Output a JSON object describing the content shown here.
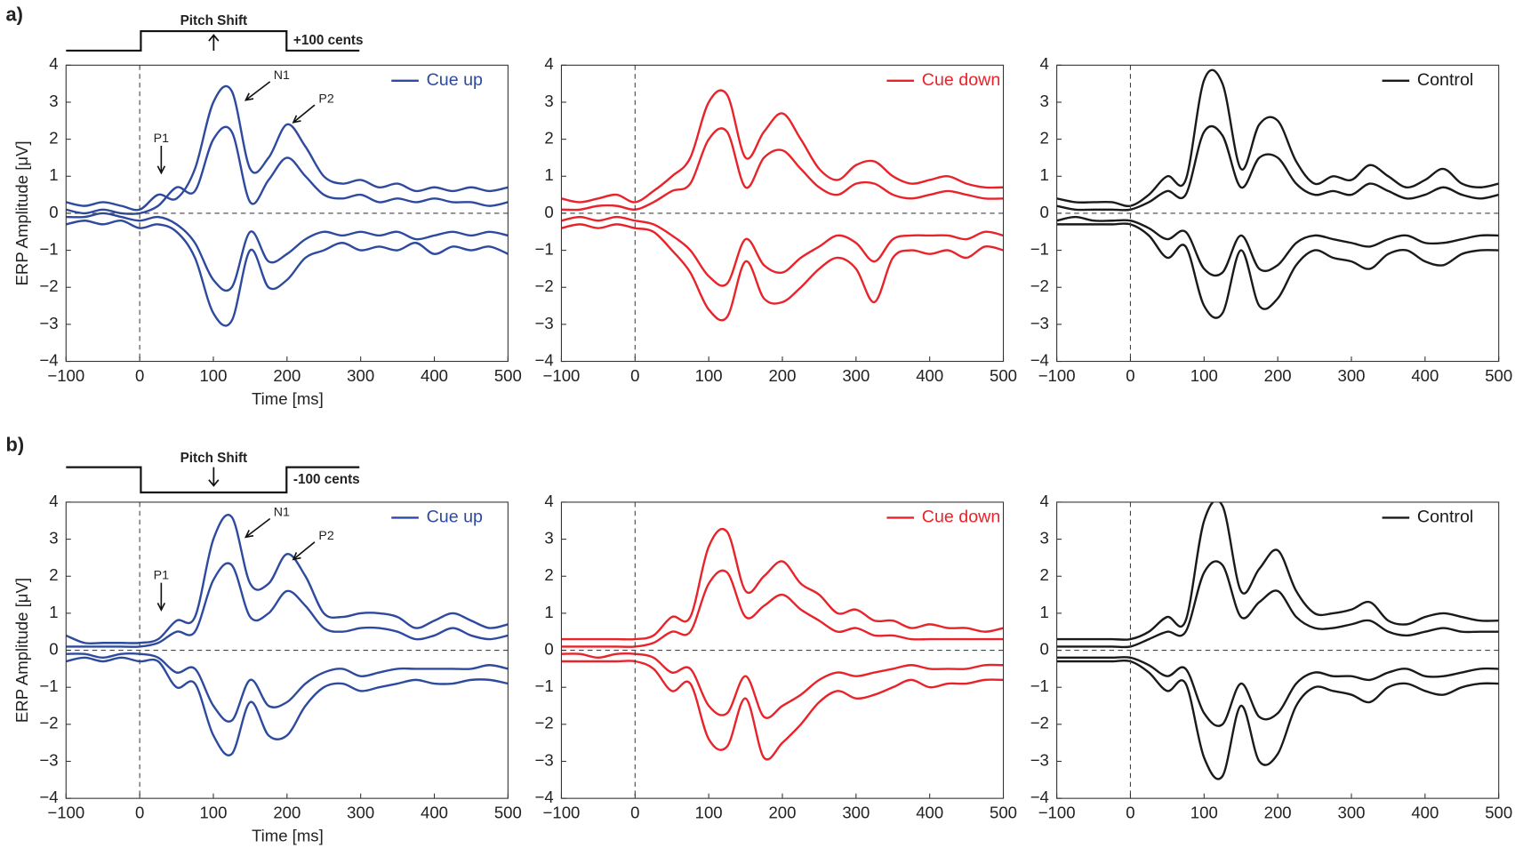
{
  "panel_labels": [
    "a)",
    "b)"
  ],
  "stimulus": [
    {
      "label": "Pitch Shift",
      "amount": "+100 cents"
    },
    {
      "label": "Pitch Shift",
      "amount": "-100 cents"
    }
  ],
  "chart_data": [
    {
      "type": "line",
      "legend": "Cue up",
      "color": "#2e4a9e",
      "ylabel": "ERP Amplitude [μV]",
      "xlabel": "Time [ms]",
      "annotations": [
        "P1",
        "N1",
        "P2"
      ],
      "x": [
        -100,
        -75,
        -50,
        -25,
        0,
        25,
        50,
        75,
        100,
        125,
        150,
        175,
        200,
        225,
        250,
        275,
        300,
        325,
        350,
        375,
        400,
        425,
        450,
        475,
        500
      ],
      "traces": [
        [
          0.3,
          0.2,
          0.3,
          0.2,
          0.1,
          0.5,
          0.4,
          1.2,
          3.0,
          3.3,
          1.2,
          1.5,
          2.4,
          1.8,
          1.0,
          0.8,
          0.9,
          0.7,
          0.8,
          0.6,
          0.7,
          0.6,
          0.7,
          0.6,
          0.7
        ],
        [
          -0.3,
          -0.2,
          -0.3,
          -0.2,
          -0.4,
          -0.3,
          -0.5,
          -1.2,
          -2.7,
          -2.9,
          -1.0,
          -2.0,
          -1.8,
          -1.2,
          -1.0,
          -0.8,
          -1.0,
          -0.9,
          -1.0,
          -0.8,
          -1.1,
          -0.9,
          -1.0,
          -0.9,
          -1.1
        ],
        [
          0.1,
          0.0,
          0.1,
          0.0,
          0.0,
          0.2,
          0.7,
          0.6,
          2.0,
          2.2,
          0.3,
          0.9,
          1.5,
          1.0,
          0.5,
          0.4,
          0.5,
          0.3,
          0.4,
          0.3,
          0.4,
          0.3,
          0.3,
          0.2,
          0.3
        ],
        [
          -0.1,
          -0.1,
          0.0,
          -0.1,
          -0.2,
          -0.1,
          -0.3,
          -0.8,
          -1.8,
          -2.0,
          -0.5,
          -1.3,
          -1.1,
          -0.7,
          -0.5,
          -0.6,
          -0.5,
          -0.6,
          -0.5,
          -0.7,
          -0.6,
          -0.5,
          -0.6,
          -0.5,
          -0.6
        ]
      ],
      "xlim": [
        -100,
        500
      ],
      "ylim": [
        -4,
        4
      ],
      "xticks": [
        {
          "value": -100,
          "label": "−100"
        },
        0,
        100,
        200,
        300,
        400,
        500
      ],
      "yticks": [
        {
          "value": -4,
          "label": "−4"
        },
        {
          "value": -3,
          "label": "−3"
        },
        {
          "value": -2,
          "label": "−2"
        },
        {
          "value": -1,
          "label": "−1"
        },
        0,
        1,
        2,
        3,
        4
      ]
    },
    {
      "type": "line",
      "legend": "Cue down",
      "color": "#e8232a",
      "x": [
        -100,
        -75,
        -50,
        -25,
        0,
        25,
        50,
        75,
        100,
        125,
        150,
        175,
        200,
        225,
        250,
        275,
        300,
        325,
        350,
        375,
        400,
        425,
        450,
        475,
        500
      ],
      "traces": [
        [
          0.4,
          0.3,
          0.4,
          0.5,
          0.3,
          0.6,
          1.0,
          1.5,
          3.0,
          3.2,
          1.5,
          2.2,
          2.7,
          2.0,
          1.2,
          0.9,
          1.3,
          1.4,
          1.0,
          0.8,
          0.9,
          1.0,
          0.8,
          0.7,
          0.7
        ],
        [
          -0.4,
          -0.3,
          -0.4,
          -0.3,
          -0.4,
          -0.5,
          -1.0,
          -1.6,
          -2.6,
          -2.8,
          -1.3,
          -2.3,
          -2.4,
          -2.0,
          -1.5,
          -1.2,
          -1.5,
          -2.4,
          -1.2,
          -1.0,
          -1.1,
          -1.0,
          -1.2,
          -0.9,
          -1.0
        ],
        [
          0.1,
          0.1,
          0.2,
          0.2,
          0.1,
          0.3,
          0.6,
          0.8,
          2.0,
          2.2,
          0.7,
          1.5,
          1.7,
          1.2,
          0.7,
          0.5,
          0.8,
          0.8,
          0.5,
          0.4,
          0.5,
          0.6,
          0.5,
          0.4,
          0.4
        ],
        [
          -0.2,
          -0.1,
          -0.2,
          -0.1,
          -0.2,
          -0.3,
          -0.6,
          -1.0,
          -1.7,
          -1.9,
          -0.7,
          -1.4,
          -1.6,
          -1.2,
          -0.9,
          -0.6,
          -0.8,
          -1.3,
          -0.7,
          -0.6,
          -0.6,
          -0.6,
          -0.7,
          -0.5,
          -0.6
        ]
      ],
      "xlim": [
        -100,
        500
      ],
      "ylim": [
        -4,
        4
      ],
      "xticks": [
        {
          "value": -100,
          "label": "−100"
        },
        0,
        100,
        200,
        300,
        400,
        500
      ],
      "yticks": [
        {
          "value": -4,
          "label": "−4"
        },
        {
          "value": -3,
          "label": "−3"
        },
        {
          "value": -2,
          "label": "−2"
        },
        {
          "value": -1,
          "label": "−1"
        },
        0,
        1,
        2,
        3,
        4
      ]
    },
    {
      "type": "line",
      "legend": "Control",
      "color": "#1a1a1a",
      "x": [
        -100,
        -75,
        -50,
        -25,
        0,
        25,
        50,
        75,
        100,
        125,
        150,
        175,
        200,
        225,
        250,
        275,
        300,
        325,
        350,
        375,
        400,
        425,
        450,
        475,
        500
      ],
      "traces": [
        [
          0.4,
          0.3,
          0.3,
          0.3,
          0.2,
          0.5,
          1.0,
          0.9,
          3.6,
          3.5,
          1.2,
          2.4,
          2.5,
          1.4,
          0.8,
          1.0,
          0.9,
          1.3,
          1.0,
          0.7,
          0.9,
          1.2,
          0.8,
          0.7,
          0.8
        ],
        [
          -0.3,
          -0.3,
          -0.3,
          -0.3,
          -0.3,
          -0.6,
          -1.2,
          -0.9,
          -2.5,
          -2.7,
          -1.0,
          -2.5,
          -2.3,
          -1.4,
          -1.0,
          -1.2,
          -1.3,
          -1.5,
          -1.1,
          -1.0,
          -1.3,
          -1.4,
          -1.1,
          -1.0,
          -1.0
        ],
        [
          0.2,
          0.1,
          0.1,
          0.1,
          0.1,
          0.3,
          0.6,
          0.5,
          2.2,
          2.1,
          0.7,
          1.5,
          1.5,
          0.8,
          0.5,
          0.6,
          0.5,
          0.8,
          0.6,
          0.4,
          0.5,
          0.7,
          0.5,
          0.4,
          0.5
        ],
        [
          -0.2,
          -0.1,
          -0.2,
          -0.2,
          -0.2,
          -0.4,
          -0.7,
          -0.5,
          -1.5,
          -1.6,
          -0.6,
          -1.5,
          -1.4,
          -0.8,
          -0.6,
          -0.7,
          -0.8,
          -0.9,
          -0.7,
          -0.6,
          -0.8,
          -0.8,
          -0.7,
          -0.6,
          -0.6
        ]
      ],
      "xlim": [
        -100,
        500
      ],
      "ylim": [
        -4,
        4
      ],
      "xticks": [
        {
          "value": -100,
          "label": "−100"
        },
        0,
        100,
        200,
        300,
        400,
        500
      ],
      "yticks": [
        {
          "value": -4,
          "label": "−4"
        },
        {
          "value": -3,
          "label": "−3"
        },
        {
          "value": -2,
          "label": "−2"
        },
        {
          "value": -1,
          "label": "−1"
        },
        0,
        1,
        2,
        3,
        4
      ]
    },
    {
      "type": "line",
      "legend": "Cue up",
      "color": "#2e4a9e",
      "ylabel": "ERP Amplitude [μV]",
      "xlabel": "Time [ms]",
      "annotations": [
        "P1",
        "N1",
        "P2"
      ],
      "x": [
        -100,
        -75,
        -50,
        -25,
        0,
        25,
        50,
        75,
        100,
        125,
        150,
        175,
        200,
        225,
        250,
        275,
        300,
        325,
        350,
        375,
        400,
        425,
        450,
        475,
        500
      ],
      "traces": [
        [
          0.4,
          0.2,
          0.2,
          0.2,
          0.2,
          0.3,
          0.8,
          0.9,
          3.0,
          3.6,
          1.8,
          1.8,
          2.6,
          2.0,
          1.0,
          0.9,
          1.0,
          1.0,
          0.9,
          0.6,
          0.8,
          1.0,
          0.8,
          0.6,
          0.7
        ],
        [
          -0.3,
          -0.2,
          -0.3,
          -0.2,
          -0.3,
          -0.3,
          -1.0,
          -0.9,
          -2.3,
          -2.8,
          -1.4,
          -2.3,
          -2.3,
          -1.5,
          -1.0,
          -0.9,
          -1.1,
          -1.0,
          -0.9,
          -0.8,
          -0.9,
          -0.9,
          -0.8,
          -0.8,
          -0.9
        ],
        [
          0.1,
          0.1,
          0.1,
          0.1,
          0.1,
          0.2,
          0.5,
          0.5,
          1.9,
          2.3,
          0.9,
          1.0,
          1.6,
          1.2,
          0.6,
          0.5,
          0.6,
          0.6,
          0.5,
          0.3,
          0.4,
          0.6,
          0.4,
          0.3,
          0.4
        ],
        [
          -0.1,
          -0.1,
          -0.2,
          -0.1,
          -0.1,
          -0.2,
          -0.6,
          -0.5,
          -1.5,
          -1.9,
          -0.8,
          -1.5,
          -1.4,
          -0.9,
          -0.6,
          -0.5,
          -0.7,
          -0.6,
          -0.5,
          -0.5,
          -0.5,
          -0.5,
          -0.5,
          -0.4,
          -0.5
        ]
      ],
      "xlim": [
        -100,
        500
      ],
      "ylim": [
        -4,
        4
      ],
      "xticks": [
        {
          "value": -100,
          "label": "−100"
        },
        0,
        100,
        200,
        300,
        400,
        500
      ],
      "yticks": [
        {
          "value": -4,
          "label": "−4"
        },
        {
          "value": -3,
          "label": "−3"
        },
        {
          "value": -2,
          "label": "−2"
        },
        {
          "value": -1,
          "label": "−1"
        },
        0,
        1,
        2,
        3,
        4
      ]
    },
    {
      "type": "line",
      "legend": "Cue down",
      "color": "#e8232a",
      "x": [
        -100,
        -75,
        -50,
        -25,
        0,
        25,
        50,
        75,
        100,
        125,
        150,
        175,
        200,
        225,
        250,
        275,
        300,
        325,
        350,
        375,
        400,
        425,
        450,
        475,
        500
      ],
      "traces": [
        [
          0.3,
          0.3,
          0.3,
          0.3,
          0.3,
          0.4,
          0.9,
          0.9,
          2.8,
          3.2,
          1.6,
          2.0,
          2.4,
          1.8,
          1.5,
          1.0,
          1.1,
          0.8,
          0.8,
          0.6,
          0.7,
          0.6,
          0.6,
          0.5,
          0.6
        ],
        [
          -0.3,
          -0.3,
          -0.3,
          -0.3,
          -0.3,
          -0.5,
          -1.1,
          -0.9,
          -2.4,
          -2.6,
          -1.3,
          -2.9,
          -2.5,
          -2.0,
          -1.4,
          -1.1,
          -1.3,
          -1.2,
          -1.0,
          -0.8,
          -1.0,
          -0.9,
          -0.9,
          -0.8,
          -0.8
        ],
        [
          0.1,
          0.1,
          0.1,
          0.1,
          0.1,
          0.2,
          0.5,
          0.5,
          1.8,
          2.1,
          0.9,
          1.2,
          1.5,
          1.1,
          0.8,
          0.5,
          0.6,
          0.4,
          0.4,
          0.3,
          0.3,
          0.3,
          0.3,
          0.3,
          0.3
        ],
        [
          -0.1,
          -0.1,
          -0.2,
          -0.1,
          -0.1,
          -0.2,
          -0.6,
          -0.5,
          -1.5,
          -1.7,
          -0.7,
          -1.8,
          -1.5,
          -1.2,
          -0.8,
          -0.6,
          -0.7,
          -0.6,
          -0.5,
          -0.4,
          -0.5,
          -0.5,
          -0.5,
          -0.4,
          -0.4
        ]
      ],
      "xlim": [
        -100,
        500
      ],
      "ylim": [
        -4,
        4
      ],
      "xticks": [
        {
          "value": -100,
          "label": "−100"
        },
        0,
        100,
        200,
        300,
        400,
        500
      ],
      "yticks": [
        {
          "value": -4,
          "label": "−4"
        },
        {
          "value": -3,
          "label": "−3"
        },
        {
          "value": -2,
          "label": "−2"
        },
        {
          "value": -1,
          "label": "−1"
        },
        0,
        1,
        2,
        3,
        4
      ]
    },
    {
      "type": "line",
      "legend": "Control",
      "color": "#1a1a1a",
      "x": [
        -100,
        -75,
        -50,
        -25,
        0,
        25,
        50,
        75,
        100,
        125,
        150,
        175,
        200,
        225,
        250,
        275,
        300,
        325,
        350,
        375,
        400,
        425,
        450,
        475,
        500
      ],
      "traces": [
        [
          0.3,
          0.3,
          0.3,
          0.3,
          0.3,
          0.5,
          0.9,
          0.8,
          3.5,
          3.9,
          1.6,
          2.2,
          2.7,
          1.6,
          1.0,
          1.0,
          1.1,
          1.3,
          0.8,
          0.7,
          0.9,
          1.0,
          0.9,
          0.8,
          0.8
        ],
        [
          -0.3,
          -0.3,
          -0.3,
          -0.3,
          -0.3,
          -0.6,
          -1.1,
          -0.9,
          -2.9,
          -3.4,
          -1.5,
          -3.0,
          -2.8,
          -1.5,
          -1.0,
          -1.1,
          -1.2,
          -1.4,
          -1.0,
          -0.9,
          -1.1,
          -1.2,
          -1.0,
          -0.9,
          -0.9
        ],
        [
          0.1,
          0.1,
          0.1,
          0.1,
          0.1,
          0.3,
          0.5,
          0.5,
          2.1,
          2.3,
          0.9,
          1.3,
          1.6,
          0.9,
          0.6,
          0.6,
          0.7,
          0.8,
          0.5,
          0.4,
          0.5,
          0.6,
          0.5,
          0.5,
          0.5
        ],
        [
          -0.2,
          -0.2,
          -0.2,
          -0.2,
          -0.2,
          -0.4,
          -0.7,
          -0.5,
          -1.7,
          -2.0,
          -0.9,
          -1.8,
          -1.7,
          -0.9,
          -0.6,
          -0.7,
          -0.7,
          -0.8,
          -0.6,
          -0.5,
          -0.7,
          -0.7,
          -0.6,
          -0.5,
          -0.5
        ]
      ],
      "xlim": [
        -100,
        500
      ],
      "ylim": [
        -4,
        4
      ],
      "xticks": [
        {
          "value": -100,
          "label": "−100"
        },
        0,
        100,
        200,
        300,
        400,
        500
      ],
      "yticks": [
        {
          "value": -4,
          "label": "−4"
        },
        {
          "value": -3,
          "label": "−3"
        },
        {
          "value": -2,
          "label": "−2"
        },
        {
          "value": -1,
          "label": "−1"
        },
        0,
        1,
        2,
        3,
        4
      ]
    }
  ]
}
